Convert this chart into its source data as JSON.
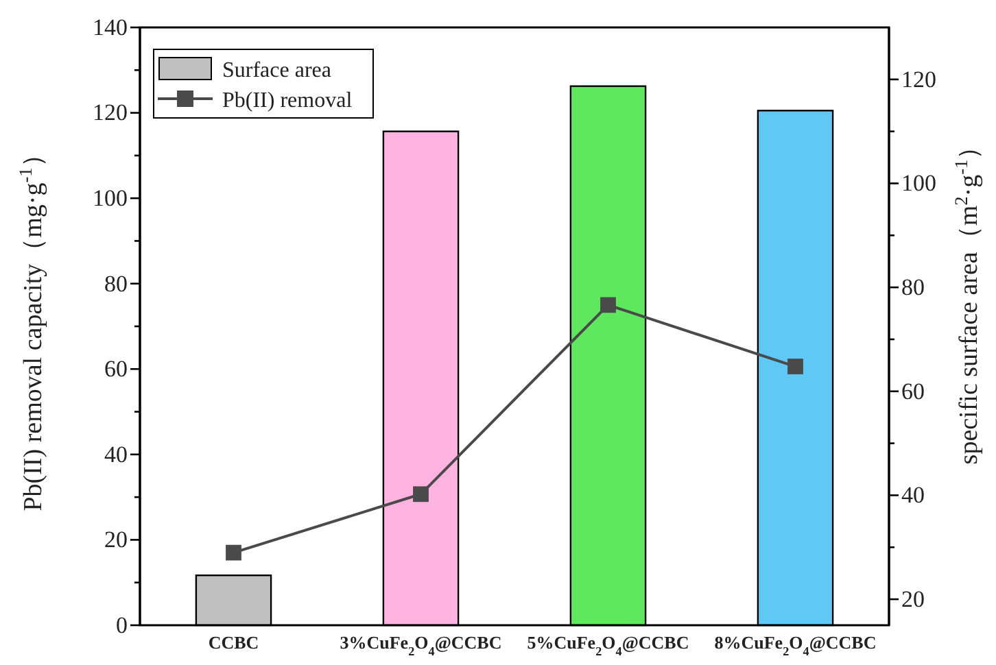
{
  "chart_data": {
    "type": "bar",
    "categories": [
      "CCBC",
      "3%CuFe$_{2}$O$_{4}$@CCBC",
      "5%CuFe$_{2}$O$_{4}$@CCBC",
      "8%CuFe$_{2}$O$_{4}$@CCBC"
    ],
    "series": [
      {
        "name": "Surface area",
        "axis": "y2",
        "colors": [
          "#c0c0c0",
          "#ffb3e0",
          "#5ee85e",
          "#5fc8f5"
        ],
        "values": [
          24.6,
          110,
          118.7,
          114
        ]
      },
      {
        "name": "Pb(II) removal",
        "type": "line",
        "axis": "y",
        "color": "#4a4a4a",
        "marker": "square",
        "values": [
          17,
          30.7,
          75,
          60.6
        ]
      }
    ],
    "ylabel": "Pb(II) removal capacity（mg·g$^{-1}$）",
    "y2label": "specific surface area（m$^{2}$·g$^{-1}$）",
    "ylim": [
      0,
      140
    ],
    "yticks": [
      0,
      {
        "value": 10,
        "label": null
      },
      20,
      {
        "value": 30,
        "label": null
      },
      40,
      {
        "value": 50,
        "label": null
      },
      60,
      {
        "value": 70,
        "label": null
      },
      80,
      {
        "value": 90,
        "label": null
      },
      100,
      {
        "value": 110,
        "label": null
      },
      120,
      {
        "value": 130,
        "label": null
      },
      140
    ],
    "y2lim": [
      15,
      130
    ],
    "y2ticks": [
      20,
      {
        "value": 30,
        "label": null
      },
      40,
      {
        "value": 50,
        "label": null
      },
      60,
      {
        "value": 70,
        "label": null
      },
      80,
      {
        "value": 90,
        "label": null
      },
      100,
      {
        "value": 110,
        "label": null
      },
      120
    ],
    "legend": "top left",
    "grid": false
  }
}
